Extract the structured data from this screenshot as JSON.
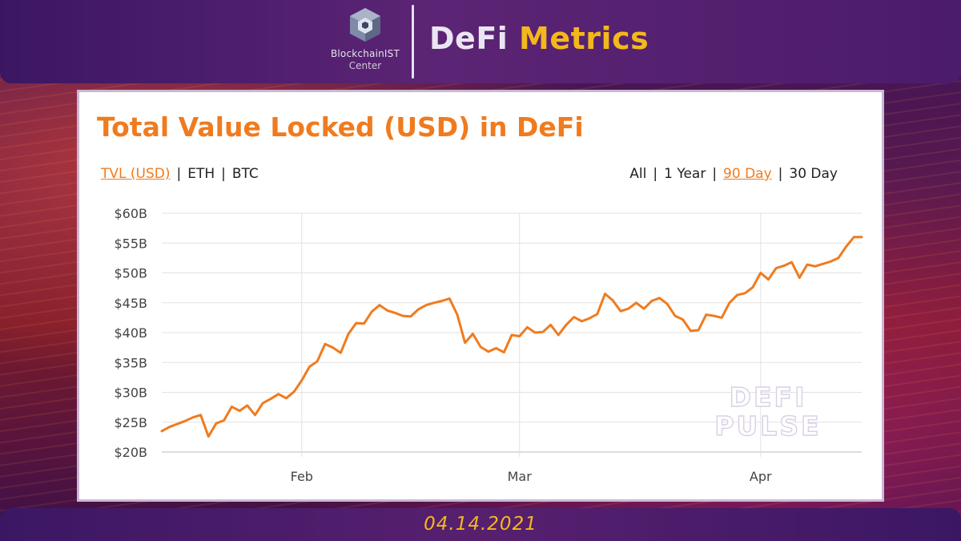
{
  "header": {
    "logo_name": "BlockchainIST",
    "logo_sub": "Center",
    "brand_part1": "DeFi",
    "brand_part2": "Metrics",
    "logo_icon": "cube-logo-icon"
  },
  "chart_panel": {
    "title": "Total Value Locked (USD) in DeFi",
    "metric_options": [
      {
        "label": "TVL (USD)",
        "active": true
      },
      {
        "label": "ETH",
        "active": false
      },
      {
        "label": "BTC",
        "active": false
      }
    ],
    "range_options": [
      {
        "label": "All",
        "active": false
      },
      {
        "label": "1 Year",
        "active": false
      },
      {
        "label": "90 Day",
        "active": true
      },
      {
        "label": "30 Day",
        "active": false
      }
    ],
    "watermark_line1": "DEFI",
    "watermark_line2": "PULSE"
  },
  "chart_data": {
    "type": "line",
    "title": "Total Value Locked (USD) in DeFi",
    "xlabel": "",
    "ylabel": "",
    "y_ticks": [
      "$20B",
      "$25B",
      "$30B",
      "$35B",
      "$40B",
      "$45B",
      "$50B",
      "$55B",
      "$60B"
    ],
    "ylim": [
      20,
      60
    ],
    "x_ticks": [
      "Feb",
      "Mar",
      "Apr"
    ],
    "xlim": [
      "2021-01-14",
      "2021-04-14"
    ],
    "grid": true,
    "series": [
      {
        "color": "#f07b1e",
        "x": [
          "2021-01-14",
          "2021-01-15",
          "2021-01-16",
          "2021-01-17",
          "2021-01-18",
          "2021-01-19",
          "2021-01-20",
          "2021-01-21",
          "2021-01-22",
          "2021-01-23",
          "2021-01-24",
          "2021-01-25",
          "2021-01-26",
          "2021-01-27",
          "2021-01-28",
          "2021-01-29",
          "2021-01-30",
          "2021-01-31",
          "2021-02-01",
          "2021-02-02",
          "2021-02-03",
          "2021-02-04",
          "2021-02-05",
          "2021-02-06",
          "2021-02-07",
          "2021-02-08",
          "2021-02-09",
          "2021-02-10",
          "2021-02-11",
          "2021-02-12",
          "2021-02-13",
          "2021-02-14",
          "2021-02-15",
          "2021-02-16",
          "2021-02-17",
          "2021-02-18",
          "2021-02-19",
          "2021-02-20",
          "2021-02-21",
          "2021-02-22",
          "2021-02-23",
          "2021-02-24",
          "2021-02-25",
          "2021-02-26",
          "2021-02-27",
          "2021-02-28",
          "2021-03-01",
          "2021-03-02",
          "2021-03-03",
          "2021-03-04",
          "2021-03-05",
          "2021-03-06",
          "2021-03-07",
          "2021-03-08",
          "2021-03-09",
          "2021-03-10",
          "2021-03-11",
          "2021-03-12",
          "2021-03-13",
          "2021-03-14",
          "2021-03-15",
          "2021-03-16",
          "2021-03-17",
          "2021-03-18",
          "2021-03-19",
          "2021-03-20",
          "2021-03-21",
          "2021-03-22",
          "2021-03-23",
          "2021-03-24",
          "2021-03-25",
          "2021-03-26",
          "2021-03-27",
          "2021-03-28",
          "2021-03-29",
          "2021-03-30",
          "2021-03-31",
          "2021-04-01",
          "2021-04-02",
          "2021-04-03",
          "2021-04-04",
          "2021-04-05",
          "2021-04-06",
          "2021-04-07",
          "2021-04-08",
          "2021-04-09",
          "2021-04-10",
          "2021-04-11",
          "2021-04-12",
          "2021-04-13",
          "2021-04-14"
        ],
        "y": [
          23.5,
          24.2,
          24.7,
          25.2,
          25.8,
          26.2,
          22.6,
          24.8,
          25.3,
          27.6,
          26.9,
          27.8,
          26.2,
          28.2,
          28.9,
          29.7,
          29.0,
          30.1,
          32.0,
          34.3,
          35.2,
          38.1,
          37.5,
          36.6,
          39.8,
          41.6,
          41.5,
          43.5,
          44.6,
          43.7,
          43.3,
          42.8,
          42.7,
          43.9,
          44.6,
          45.0,
          45.3,
          45.7,
          43.0,
          38.3,
          39.8,
          37.6,
          36.8,
          37.4,
          36.7,
          39.6,
          39.4,
          40.9,
          40.0,
          40.1,
          41.3,
          39.6,
          41.3,
          42.6,
          41.9,
          42.4,
          43.1,
          46.5,
          45.4,
          43.6,
          44.0,
          45.0,
          44.0,
          45.3,
          45.8,
          44.8,
          42.8,
          42.2,
          40.3,
          40.4,
          43.0,
          42.8,
          42.5,
          45.0,
          46.3,
          46.6,
          47.6,
          50.0,
          48.9,
          50.8,
          51.2,
          51.8,
          49.2,
          51.4,
          51.1,
          51.5,
          51.9,
          52.5,
          54.4,
          56.0,
          56.0
        ]
      }
    ]
  },
  "footer": {
    "date": "04.14.2021"
  }
}
